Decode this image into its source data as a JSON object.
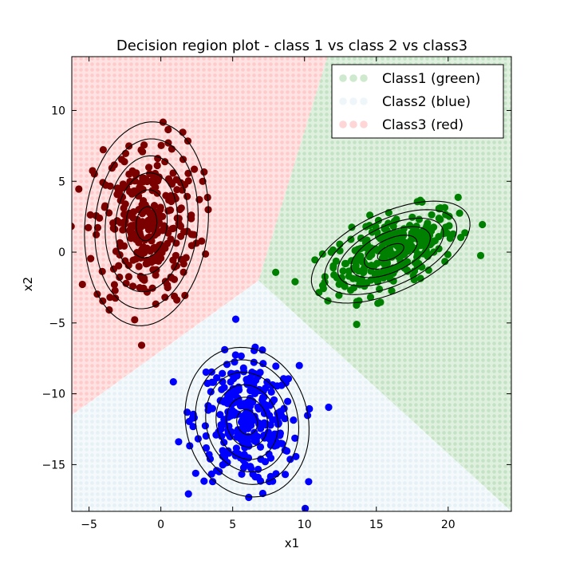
{
  "chart_data": {
    "type": "scatter",
    "title": "Decision region plot - class 1 vs class 2 vs class3",
    "xlabel": "x1",
    "ylabel": "x2",
    "xlim": [
      -6.2,
      24.4
    ],
    "ylim": [
      -18.3,
      13.8
    ],
    "xticks": [
      -5,
      0,
      5,
      10,
      15,
      20
    ],
    "yticks": [
      -15,
      -10,
      -5,
      0,
      5,
      10
    ],
    "xtick_labels": [
      "−5",
      "0",
      "5",
      "10",
      "15",
      "20"
    ],
    "ytick_labels": [
      "−15",
      "−10",
      "−5",
      "0",
      "5",
      "10"
    ],
    "grid": false,
    "legend_position": "top-right",
    "series": [
      {
        "name": "Class1 (green)",
        "color": "#008000",
        "region_color": "#cfe9cf",
        "mean": [
          16.0,
          0.0
        ],
        "spread": [
          2.3,
          1.5
        ],
        "correlation": 0.55,
        "count": 300
      },
      {
        "name": "Class2 (blue)",
        "color": "#0000ff",
        "region_color": "#eef6fa",
        "mean": [
          6.0,
          -12.0
        ],
        "spread": [
          1.8,
          2.2
        ],
        "correlation": -0.1,
        "count": 300
      },
      {
        "name": "Class3 (red)",
        "color": "#7b0000",
        "region_color": "#ffd6d6",
        "mean": [
          -1.0,
          2.0
        ],
        "spread": [
          1.8,
          3.0
        ],
        "correlation": 0.1,
        "count": 300
      }
    ],
    "decision_boundaries": {
      "junction": [
        6.8,
        -2.0
      ],
      "red_green": [
        [
          6.8,
          -2.0
        ],
        [
          11.6,
          13.8
        ]
      ],
      "red_blue": [
        [
          6.8,
          -2.0
        ],
        [
          -6.2,
          -11.5
        ]
      ],
      "green_blue": [
        [
          6.8,
          -2.0
        ],
        [
          24.4,
          -18.3
        ]
      ]
    },
    "contour_levels": [
      0.4,
      0.8,
      1.2,
      1.6,
      2.0,
      2.4
    ]
  }
}
